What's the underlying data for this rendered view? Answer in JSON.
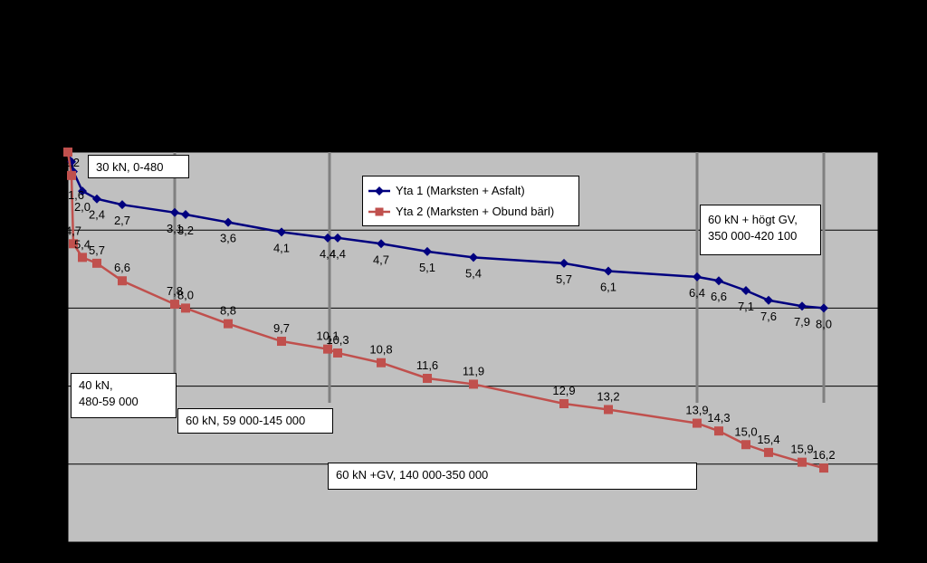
{
  "chart_data": {
    "type": "line",
    "title": "",
    "xlabel": "",
    "ylabel": "",
    "grid": true,
    "legend_position": "top-center",
    "colors": {
      "plot_background": "#c0c0c0",
      "page_background": "#000000",
      "gridline": "#000000",
      "phase_line": "#808080"
    },
    "series": [
      {
        "name": "Yta 1 (Marksten + Asfalt)",
        "color": "#00007f",
        "marker": "diamond",
        "values": [
          0,
          0.5,
          1.0,
          2.0,
          2.4,
          2.7,
          3.1,
          3.2,
          3.6,
          4.1,
          4.4,
          4.4,
          4.7,
          5.1,
          5.4,
          5.7,
          6.1,
          6.4,
          6.6,
          7.1,
          7.6,
          7.9,
          8.0
        ],
        "labels": [
          "",
          "",
          "",
          "2,0",
          "2,4",
          "2,7",
          "3,1",
          "3,2",
          "3,6",
          "4,1",
          "4,4",
          "4,4",
          "4,7",
          "5,1",
          "5,4",
          "5,7",
          "6,1",
          "6,4",
          "6,6",
          "7,1",
          "7,6",
          "7,9",
          "8,0"
        ]
      },
      {
        "name": "Yta 2 (Marksten + Obund bärl)",
        "color": "#c0504d",
        "marker": "square",
        "values": [
          0,
          1.2,
          4.7,
          5.4,
          5.7,
          6.6,
          7.8,
          8.0,
          8.8,
          9.7,
          10.1,
          10.3,
          10.8,
          11.6,
          11.9,
          12.9,
          13.2,
          13.9,
          14.3,
          15.0,
          15.4,
          15.9,
          16.2
        ],
        "labels": [
          "",
          "1,2",
          "4,7",
          "5,4",
          "5,7",
          "6,6",
          "7,8",
          "8,0",
          "8,8",
          "9,7",
          "10,1",
          "10,3",
          "10,8",
          "11,6",
          "11,9",
          "12,9",
          "13,2",
          "13,9",
          "14,3",
          "15,0",
          "15,4",
          "15,9",
          "16,2"
        ]
      }
    ],
    "extra_labels": [
      "1,6"
    ],
    "annotations": {
      "phase1": "30 kN, 0-480",
      "phase2_line1": "40 kN,",
      "phase2_line2": "480-59 000",
      "phase3": "60 kN, 59 000-145 000",
      "phase4": "60 kN +GV, 140 000-350 000",
      "phase5_line1": "60 kN + högt GV,",
      "phase5_line2": "350 000-420 100"
    }
  }
}
